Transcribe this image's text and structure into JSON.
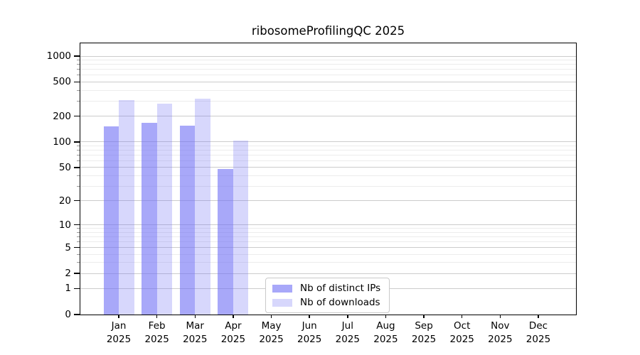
{
  "chart_data": {
    "type": "bar",
    "title": "ribosomeProfilingQC 2025",
    "categories": [
      "Jan",
      "Feb",
      "Mar",
      "Apr",
      "May",
      "Jun",
      "Jul",
      "Aug",
      "Sep",
      "Oct",
      "Nov",
      "Dec"
    ],
    "x_year_label": "2025",
    "series": [
      {
        "name": "Nb of distinct IPs",
        "color": "rgba(110,110,245,0.60)",
        "solid_hex": "#a9a9f4",
        "values": [
          153,
          167,
          156,
          48,
          null,
          null,
          null,
          null,
          null,
          null,
          null,
          null
        ]
      },
      {
        "name": "Nb of downloads",
        "color": "rgba(110,110,245,0.28)",
        "solid_hex": "#dbdbfa",
        "values": [
          308,
          282,
          319,
          104,
          null,
          null,
          null,
          null,
          null,
          null,
          null,
          null
        ]
      }
    ],
    "y_axis": {
      "scale": "log1p",
      "ticks": [
        0,
        1,
        2,
        5,
        10,
        20,
        50,
        100,
        200,
        500,
        1000
      ],
      "tick_labels": [
        "0",
        "1",
        "2",
        "5",
        "10",
        "20",
        "50",
        "100",
        "200",
        "500",
        "1000"
      ],
      "range_top": 1000
    },
    "grid": true,
    "legend_position": "bottom-center"
  }
}
